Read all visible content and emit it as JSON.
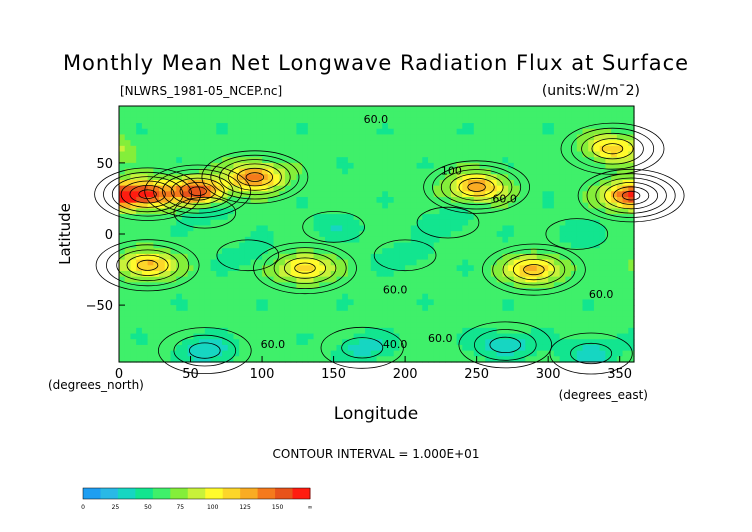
{
  "chart_data": {
    "type": "heatmap",
    "title": "Monthly Mean Net Longwave Radiation Flux at Surface",
    "source_file": "[NLWRS_1981-05_NCEP.nc]",
    "units": "(units:W/m¯2)",
    "xlabel": "Longitude",
    "ylabel": "Latitude",
    "x_unit_label": "(degrees_east)",
    "y_unit_label": "(degrees_north)",
    "xlim": [
      0,
      360
    ],
    "ylim": [
      -90,
      90
    ],
    "x_ticks": [
      0,
      50,
      100,
      150,
      200,
      250,
      300,
      350
    ],
    "y_ticks": [
      50,
      0,
      -50
    ],
    "contour_interval_text": "CONTOUR INTERVAL = 1.000E+01",
    "contour_labels": [
      "60.0",
      "60.0",
      "60.0",
      "60.0",
      "60.0",
      "60.0",
      "40.0",
      "100"
    ],
    "colorbar": {
      "levels": [
        0,
        12.5,
        25,
        37.5,
        50,
        62.5,
        75,
        87.5,
        100,
        112.5,
        125,
        137.5,
        150,
        162.5
      ],
      "tick_labels": [
        "0",
        "25",
        "50",
        "75",
        "100",
        "125",
        "150",
        "∞"
      ],
      "colors": [
        "#1e9ef2",
        "#29b9e6",
        "#16d6c2",
        "#12e58f",
        "#3ff06a",
        "#84ee3a",
        "#c8f23a",
        "#fffb2c",
        "#fcd62a",
        "#f9ac23",
        "#f57a1c",
        "#e8531a",
        "#ff1c10"
      ]
    },
    "background_value": 55,
    "features": [
      {
        "lon": 20,
        "lat": 28,
        "value": 140
      },
      {
        "lon": 55,
        "lat": 30,
        "value": 148
      },
      {
        "lon": 95,
        "lat": 40,
        "value": 135
      },
      {
        "lon": 250,
        "lat": 33,
        "value": 125
      },
      {
        "lon": 358,
        "lat": 27,
        "value": 145
      },
      {
        "lon": 345,
        "lat": 60,
        "value": 110
      },
      {
        "lon": 20,
        "lat": -22,
        "value": 120
      },
      {
        "lon": 130,
        "lat": -24,
        "value": 110
      },
      {
        "lon": 290,
        "lat": -25,
        "value": 118
      },
      {
        "lon": 60,
        "lat": 15,
        "value": 40
      },
      {
        "lon": 150,
        "lat": 5,
        "value": 40
      },
      {
        "lon": 230,
        "lat": 8,
        "value": 38
      },
      {
        "lon": 320,
        "lat": 0,
        "value": 42
      },
      {
        "lon": 90,
        "lat": -15,
        "value": 42
      },
      {
        "lon": 200,
        "lat": -15,
        "value": 40
      },
      {
        "lon": 60,
        "lat": -82,
        "value": 25
      },
      {
        "lon": 170,
        "lat": -80,
        "value": 30
      },
      {
        "lon": 270,
        "lat": -78,
        "value": 22
      },
      {
        "lon": 330,
        "lat": -84,
        "value": 28
      }
    ]
  }
}
